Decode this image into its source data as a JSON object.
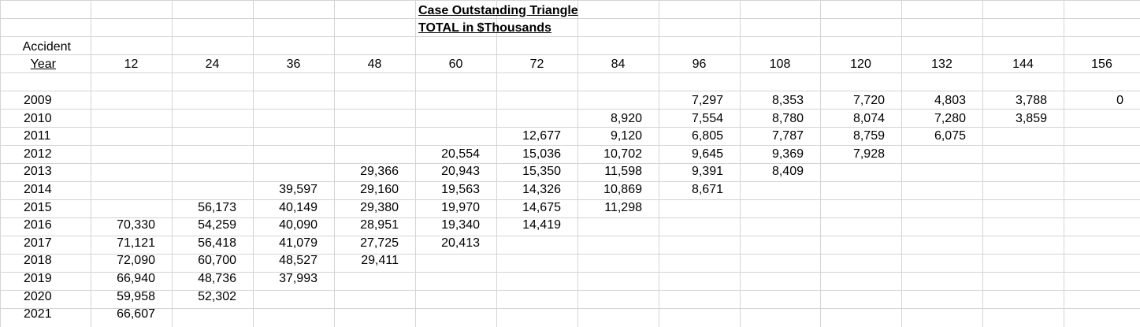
{
  "sheet": {
    "title_line1": "Case Outstanding Triangle",
    "title_line2": "TOTAL in $Thousands",
    "row_header_line1": "Accident",
    "row_header_line2": "Year",
    "dev_ages": [
      "12",
      "24",
      "36",
      "48",
      "60",
      "72",
      "84",
      "96",
      "108",
      "120",
      "132",
      "144",
      "156"
    ],
    "rows": [
      {
        "year": "2009",
        "values": [
          "",
          "",
          "",
          "",
          "",
          "",
          "",
          "7,297",
          "8,353",
          "7,720",
          "4,803",
          "3,788",
          "0"
        ]
      },
      {
        "year": "2010",
        "values": [
          "",
          "",
          "",
          "",
          "",
          "",
          "8,920",
          "7,554",
          "8,780",
          "8,074",
          "7,280",
          "3,859",
          ""
        ]
      },
      {
        "year": "2011",
        "values": [
          "",
          "",
          "",
          "",
          "",
          "12,677",
          "9,120",
          "6,805",
          "7,787",
          "8,759",
          "6,075",
          "",
          ""
        ]
      },
      {
        "year": "2012",
        "values": [
          "",
          "",
          "",
          "",
          "20,554",
          "15,036",
          "10,702",
          "9,645",
          "9,369",
          "7,928",
          "",
          "",
          ""
        ]
      },
      {
        "year": "2013",
        "values": [
          "",
          "",
          "",
          "29,366",
          "20,943",
          "15,350",
          "11,598",
          "9,391",
          "8,409",
          "",
          "",
          "",
          ""
        ]
      },
      {
        "year": "2014",
        "values": [
          "",
          "",
          "39,597",
          "29,160",
          "19,563",
          "14,326",
          "10,869",
          "8,671",
          "",
          "",
          "",
          "",
          ""
        ]
      },
      {
        "year": "2015",
        "values": [
          "",
          "56,173",
          "40,149",
          "29,380",
          "19,970",
          "14,675",
          "11,298",
          "",
          "",
          "",
          "",
          "",
          ""
        ]
      },
      {
        "year": "2016",
        "values": [
          "70,330",
          "54,259",
          "40,090",
          "28,951",
          "19,340",
          "14,419",
          "",
          "",
          "",
          "",
          "",
          "",
          ""
        ]
      },
      {
        "year": "2017",
        "values": [
          "71,121",
          "56,418",
          "41,079",
          "27,725",
          "20,413",
          "",
          "",
          "",
          "",
          "",
          "",
          "",
          ""
        ]
      },
      {
        "year": "2018",
        "values": [
          "72,090",
          "60,700",
          "48,527",
          "29,411",
          "",
          "",
          "",
          "",
          "",
          "",
          "",
          "",
          ""
        ]
      },
      {
        "year": "2019",
        "values": [
          "66,940",
          "48,736",
          "37,993",
          "",
          "",
          "",
          "",
          "",
          "",
          "",
          "",
          "",
          ""
        ]
      },
      {
        "year": "2020",
        "values": [
          "59,958",
          "52,302",
          "",
          "",
          "",
          "",
          "",
          "",
          "",
          "",
          "",
          "",
          ""
        ]
      },
      {
        "year": "2021",
        "values": [
          "66,607",
          "",
          "",
          "",
          "",
          "",
          "",
          "",
          "",
          "",
          "",
          "",
          ""
        ]
      }
    ]
  }
}
